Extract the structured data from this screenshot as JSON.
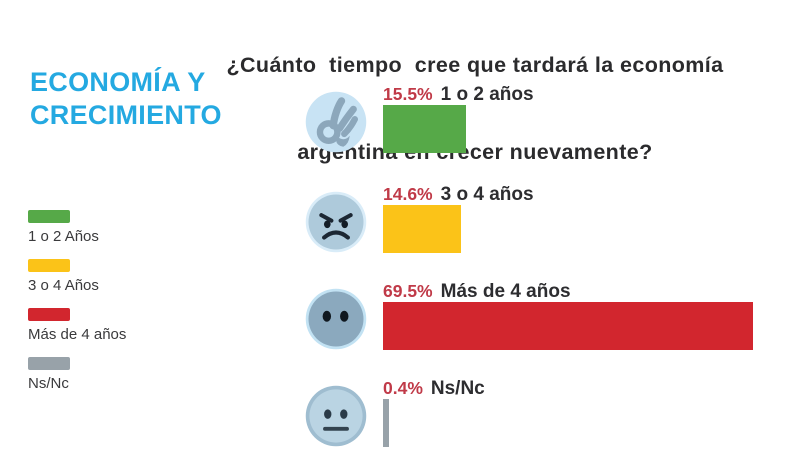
{
  "title": {
    "line1": "¿Cuánto  tiempo  cree que tardará la economía",
    "line2": "argentina en crecer nuevamente?"
  },
  "section_title": {
    "line1": "ECONOMÍA Y",
    "line2": "CRECIMIENTO",
    "color": "#24A9E1"
  },
  "legend": {
    "items": [
      {
        "label": "1 o 2 Años",
        "color": "#56A948"
      },
      {
        "label": "3 o 4 Años",
        "color": "#FBC318"
      },
      {
        "label": "Más de 4 años",
        "color": "#D2262E"
      },
      {
        "label": "Ns/Nc",
        "color": "#98A2A9"
      }
    ]
  },
  "chart_data": {
    "type": "bar",
    "orientation": "horizontal",
    "title": "¿Cuánto tiempo cree que tardará la economía argentina en crecer nuevamente?",
    "subtitle": "ECONOMÍA Y CRECIMIENTO",
    "categories": [
      "1 o 2 años",
      "3 o 4 años",
      "Más de 4 años",
      "Ns/Nc"
    ],
    "values": [
      15.5,
      14.6,
      69.5,
      0.4
    ],
    "unit": "%",
    "colors": [
      "#56A948",
      "#FBC318",
      "#D2262E",
      "#98A2A9"
    ],
    "icons": [
      "ok-hand-icon",
      "angry-face-icon",
      "wide-eyes-face-icon",
      "neutral-face-icon"
    ],
    "value_label_color": "#C03A48",
    "axis": "none",
    "grid": false,
    "legend_position": "left",
    "xlim": [
      0,
      69.5
    ]
  }
}
